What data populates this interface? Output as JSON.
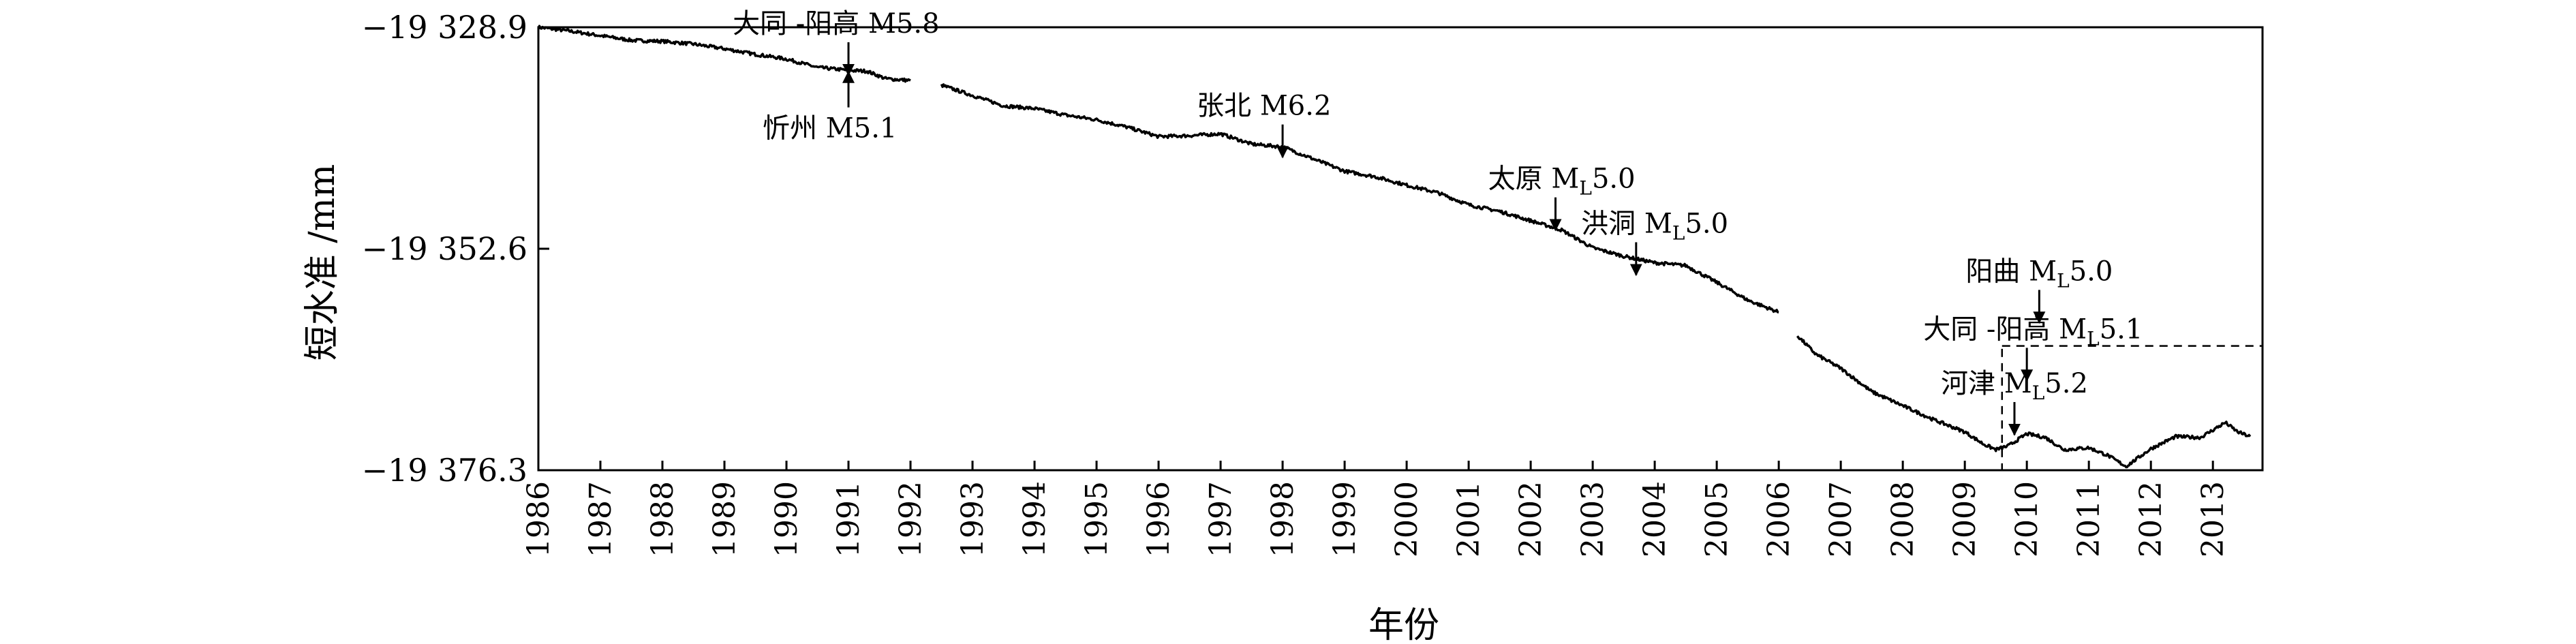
{
  "chart_data": {
    "type": "line",
    "xlabel": "年份",
    "ylabel": "短水准 /mm",
    "xlim": [
      1986.0,
      2013.8
    ],
    "ylim": [
      -19376.3,
      -19328.9
    ],
    "y_ticks": [
      {
        "value": -19328.9,
        "label": "−19 328.9"
      },
      {
        "value": -19352.6,
        "label": "−19 352.6"
      },
      {
        "value": -19376.3,
        "label": "−19 376.3"
      }
    ],
    "x_tick_labels": [
      "1986",
      "1987",
      "1988",
      "1989",
      "1990",
      "1991",
      "1992",
      "1993",
      "1994",
      "1995",
      "1996",
      "1997",
      "1998",
      "1999",
      "2000",
      "2001",
      "2002",
      "2003",
      "2004",
      "2005",
      "2006",
      "2007",
      "2008",
      "2009",
      "2010",
      "2011",
      "2012",
      "2013"
    ],
    "series": [
      {
        "color": "#000000",
        "segments": [
          [
            [
              1986.0,
              -19328.9
            ],
            [
              1986.5,
              -19329.3
            ],
            [
              1987.0,
              -19329.8
            ],
            [
              1987.5,
              -19330.3
            ],
            [
              1988.0,
              -19330.4
            ],
            [
              1988.5,
              -19330.7
            ],
            [
              1989.0,
              -19331.2
            ],
            [
              1989.5,
              -19331.8
            ],
            [
              1990.0,
              -19332.3
            ],
            [
              1990.5,
              -19333.2
            ],
            [
              1991.0,
              -19333.5
            ],
            [
              1991.3,
              -19333.6
            ],
            [
              1991.6,
              -19334.4
            ],
            [
              1992.0,
              -19334.6
            ]
          ],
          [
            [
              1992.5,
              -19335.1
            ],
            [
              1993.0,
              -19336.2
            ],
            [
              1993.5,
              -19337.3
            ],
            [
              1994.0,
              -19337.6
            ],
            [
              1994.5,
              -19338.3
            ],
            [
              1995.0,
              -19338.8
            ],
            [
              1995.5,
              -19339.6
            ],
            [
              1996.0,
              -19340.6
            ],
            [
              1996.5,
              -19340.5
            ],
            [
              1997.0,
              -19340.3
            ],
            [
              1997.5,
              -19341.4
            ],
            [
              1998.0,
              -19341.7
            ],
            [
              1998.5,
              -19343.0
            ],
            [
              1999.0,
              -19344.3
            ],
            [
              1999.5,
              -19344.9
            ],
            [
              2000.0,
              -19345.8
            ],
            [
              2000.5,
              -19346.6
            ],
            [
              2001.0,
              -19347.9
            ],
            [
              2001.5,
              -19348.6
            ],
            [
              2002.0,
              -19349.6
            ],
            [
              2002.5,
              -19350.6
            ],
            [
              2003.0,
              -19352.5
            ],
            [
              2003.5,
              -19353.4
            ],
            [
              2004.0,
              -19354.1
            ],
            [
              2004.5,
              -19354.4
            ],
            [
              2005.0,
              -19356.2
            ],
            [
              2005.5,
              -19358.1
            ],
            [
              2006.0,
              -19359.4
            ]
          ],
          [
            [
              2006.3,
              -19361.9
            ],
            [
              2006.6,
              -19363.9
            ],
            [
              2007.0,
              -19365.4
            ],
            [
              2007.5,
              -19367.9
            ],
            [
              2008.0,
              -19369.4
            ],
            [
              2008.5,
              -19370.9
            ],
            [
              2009.0,
              -19372.2
            ],
            [
              2009.3,
              -19373.5
            ],
            [
              2009.5,
              -19374.1
            ],
            [
              2009.7,
              -19373.7
            ],
            [
              2010.0,
              -19372.4
            ],
            [
              2010.3,
              -19372.8
            ],
            [
              2010.6,
              -19374.1
            ],
            [
              2011.0,
              -19373.9
            ],
            [
              2011.3,
              -19374.7
            ],
            [
              2011.6,
              -19375.9
            ],
            [
              2012.0,
              -19374.0
            ],
            [
              2012.4,
              -19372.7
            ],
            [
              2012.8,
              -19372.8
            ],
            [
              2013.2,
              -19371.2
            ],
            [
              2013.4,
              -19372.2
            ],
            [
              2013.6,
              -19372.7
            ]
          ]
        ]
      }
    ],
    "annotations": [
      {
        "main": "大同 -阳高 M5.8",
        "sub": "",
        "suffix": "",
        "x": 1991.0,
        "text_x": 1990.8,
        "text_y": -19328.9,
        "arrow": "down"
      },
      {
        "main": "忻州 M5.1",
        "sub": "",
        "suffix": "",
        "x": 1991.0,
        "text_x": 1990.7,
        "text_y": -19340.1,
        "arrow": "up"
      },
      {
        "main": "张北 M6.2",
        "sub": "",
        "suffix": "",
        "x": 1998.0,
        "text_x": 1997.7,
        "text_y": -19337.7,
        "arrow": "down"
      },
      {
        "main": "太原 M",
        "sub": "L",
        "suffix": "5.0",
        "x": 2002.4,
        "text_x": 2002.5,
        "text_y": -19345.5,
        "arrow": "down"
      },
      {
        "main": "洪洞 M",
        "sub": "L",
        "suffix": "5.0",
        "x": 2003.7,
        "text_x": 2004.0,
        "text_y": -19350.3,
        "arrow": "down"
      },
      {
        "main": "阳曲 M",
        "sub": "L",
        "suffix": "5.0",
        "x": 2010.2,
        "text_x": 2010.2,
        "text_y": -19355.4,
        "arrow": "down"
      },
      {
        "main": "大同 -阳高 M",
        "sub": "L",
        "suffix": "5.1",
        "x": 2010.0,
        "text_x": 2010.1,
        "text_y": -19361.6,
        "arrow": "down"
      },
      {
        "main": "河津 M",
        "sub": "L",
        "suffix": "5.2",
        "x": 2009.8,
        "text_x": 2009.8,
        "text_y": -19367.4,
        "arrow": "down"
      }
    ],
    "highlight_box": {
      "x0": 2009.6,
      "x1": 2013.8,
      "y0": -19376.3,
      "y1": -19363.0,
      "style": "dashed"
    },
    "grid": false,
    "legend": "none"
  }
}
